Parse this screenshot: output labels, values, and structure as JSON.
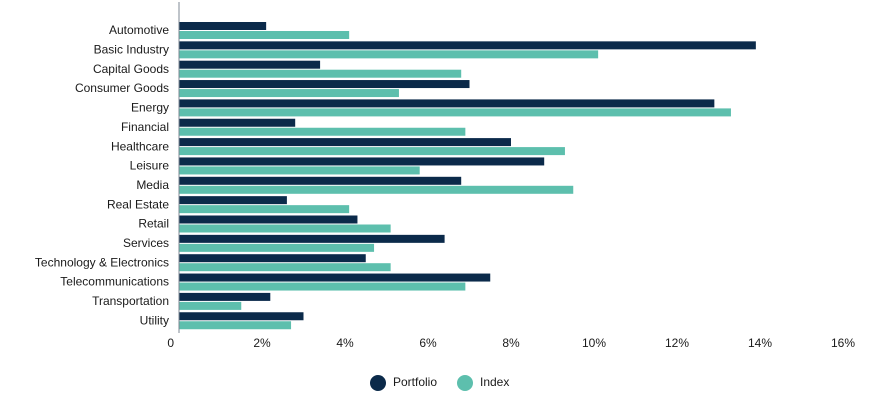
{
  "chart_data": {
    "type": "bar",
    "orientation": "horizontal",
    "categories": [
      "Automotive",
      "Basic Industry",
      "Capital Goods",
      "Consumer Goods",
      "Energy",
      "Financial",
      "Healthcare",
      "Leisure",
      "Media",
      "Real Estate",
      "Retail",
      "Services",
      "Technology & Electronics",
      "Telecommunications",
      "Transportation",
      "Utility"
    ],
    "series": [
      {
        "name": "Portfolio",
        "color": "#0b2a4a",
        "values": [
          2.1,
          13.9,
          3.4,
          7.0,
          12.9,
          2.8,
          8.0,
          8.8,
          6.8,
          2.6,
          4.3,
          6.4,
          4.5,
          7.5,
          2.2,
          3.0
        ]
      },
      {
        "name": "Index",
        "color": "#5dbfad",
        "values": [
          4.1,
          10.1,
          6.8,
          5.3,
          13.3,
          6.9,
          9.3,
          5.8,
          9.5,
          4.1,
          5.1,
          4.7,
          5.1,
          6.9,
          1.5,
          2.7
        ]
      }
    ],
    "xlim": [
      0,
      16
    ],
    "xticks": [
      {
        "value": 0,
        "label": "0"
      },
      {
        "value": 2,
        "label": "2%"
      },
      {
        "value": 4,
        "label": "4%"
      },
      {
        "value": 6,
        "label": "6%"
      },
      {
        "value": 8,
        "label": "8%"
      },
      {
        "value": 10,
        "label": "10%"
      },
      {
        "value": 12,
        "label": "12%"
      },
      {
        "value": 14,
        "label": "14%"
      },
      {
        "value": 16,
        "label": "16%"
      }
    ],
    "title": "",
    "xlabel": "",
    "ylabel": "",
    "grid": false,
    "legend_position": "bottom-center"
  },
  "colors": {
    "axis": "#7f8a94",
    "label_text": "#1a1a1a"
  }
}
